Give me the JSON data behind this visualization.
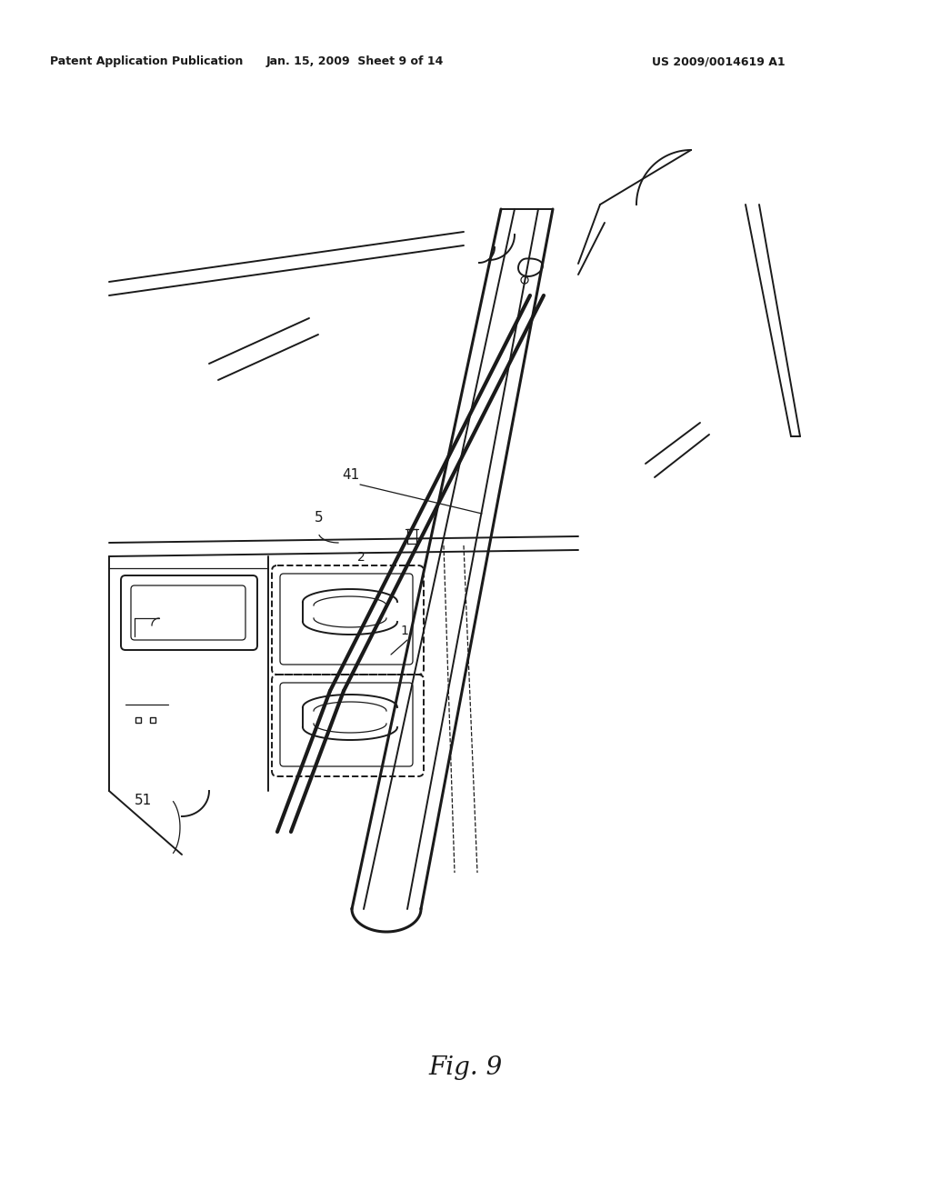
{
  "header_left": "Patent Application Publication",
  "header_center": "Jan. 15, 2009  Sheet 9 of 14",
  "header_right": "US 2009/0014619 A1",
  "figure_label": "Fig. 9",
  "bg_color": "#ffffff",
  "line_color": "#1a1a1a",
  "label_1": "1",
  "label_2": "2",
  "label_5": "5",
  "label_41": "41",
  "label_51": "51"
}
